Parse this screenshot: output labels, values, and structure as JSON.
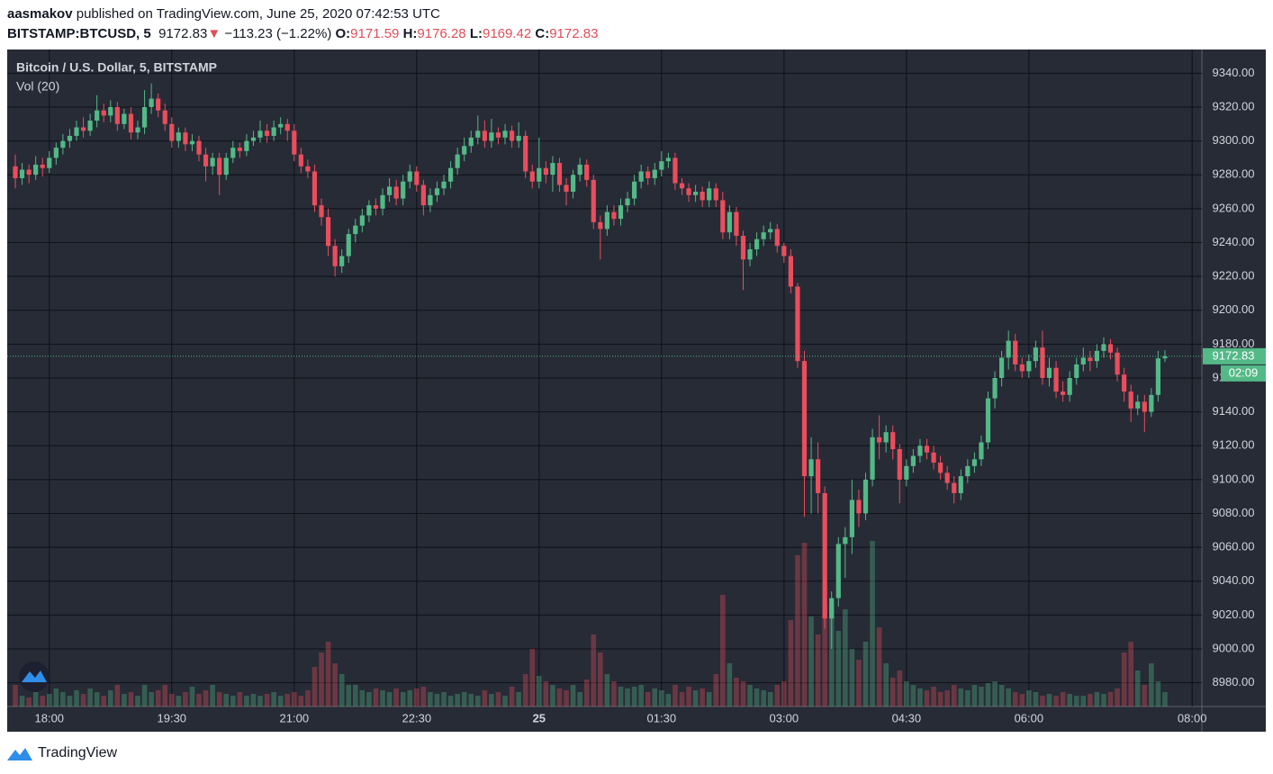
{
  "header": {
    "author": "aasmakov",
    "published": "published on TradingView.com, June 25, 2020 07:42:53 UTC",
    "symbol": "BITSTAMP:BTCUSD, 5",
    "change": "−113.23 (−1.22%)",
    "ohlc_labels": [
      "O:",
      "H:",
      "L:",
      "C:"
    ]
  },
  "footer": {
    "brand": "TradingView"
  },
  "chart_data": {
    "type": "candlestick",
    "title": "Bitcoin / U.S. Dollar, 5, BITSTAMP",
    "volume_title": "Vol (20)",
    "countdown": "02:09",
    "grid": true,
    "up_color": "#53b987",
    "down_color": "#eb4d5c",
    "categories": [
      "17:35",
      "17:40",
      "17:45",
      "17:50",
      "17:55",
      "18:00",
      "18:05",
      "18:10",
      "18:15",
      "18:20",
      "18:25",
      "18:30",
      "18:35",
      "18:40",
      "18:45",
      "18:50",
      "18:55",
      "19:00",
      "19:05",
      "19:10",
      "19:15",
      "19:20",
      "19:25",
      "19:30",
      "19:35",
      "19:40",
      "19:45",
      "19:50",
      "19:55",
      "20:00",
      "20:05",
      "20:10",
      "20:15",
      "20:20",
      "20:25",
      "20:30",
      "20:35",
      "20:40",
      "20:45",
      "20:50",
      "20:55",
      "21:00",
      "21:05",
      "21:10",
      "21:15",
      "21:20",
      "21:25",
      "21:30",
      "21:35",
      "21:40",
      "21:45",
      "21:50",
      "21:55",
      "22:00",
      "22:05",
      "22:10",
      "22:15",
      "22:20",
      "22:25",
      "22:30",
      "22:35",
      "22:40",
      "22:45",
      "22:50",
      "22:55",
      "23:00",
      "23:05",
      "23:10",
      "23:15",
      "23:20",
      "23:25",
      "23:30",
      "23:35",
      "23:40",
      "23:45",
      "23:50",
      "23:55",
      "00:00",
      "00:05",
      "00:10",
      "00:15",
      "00:20",
      "00:25",
      "00:30",
      "00:35",
      "00:40",
      "00:45",
      "00:50",
      "00:55",
      "01:00",
      "01:05",
      "01:10",
      "01:15",
      "01:20",
      "01:25",
      "01:30",
      "01:35",
      "01:40",
      "01:45",
      "01:50",
      "01:55",
      "02:00",
      "02:05",
      "02:10",
      "02:15",
      "02:20",
      "02:25",
      "02:30",
      "02:35",
      "02:40",
      "02:45",
      "02:50",
      "02:55",
      "03:00",
      "03:05",
      "03:10",
      "03:15",
      "03:20",
      "03:25",
      "03:30",
      "03:35",
      "03:40",
      "03:45",
      "03:50",
      "03:55",
      "04:00",
      "04:05",
      "04:10",
      "04:15",
      "04:20",
      "04:25",
      "04:30",
      "04:35",
      "04:40",
      "04:45",
      "04:50",
      "04:55",
      "05:00",
      "05:05",
      "05:10",
      "05:15",
      "05:20",
      "05:25",
      "05:30",
      "05:35",
      "05:40",
      "05:45",
      "05:50",
      "05:55",
      "06:00",
      "06:05",
      "06:10",
      "06:15",
      "06:20",
      "06:25",
      "06:30",
      "06:35",
      "06:40",
      "06:45",
      "06:50",
      "06:55",
      "07:00",
      "07:05",
      "07:10",
      "07:15",
      "07:20",
      "07:25",
      "07:30",
      "07:35",
      "07:40"
    ],
    "open": [
      9285,
      9278,
      9283,
      9280,
      9286,
      9284,
      9290,
      9296,
      9300,
      9303,
      9308,
      9306,
      9312,
      9318,
      9315,
      9320,
      9310,
      9316,
      9305,
      9308,
      9320,
      9325,
      9318,
      9310,
      9300,
      9305,
      9298,
      9300,
      9292,
      9285,
      9290,
      9280,
      9290,
      9296,
      9294,
      9300,
      9302,
      9306,
      9303,
      9308,
      9310,
      9306,
      9292,
      9285,
      9282,
      9262,
      9255,
      9238,
      9226,
      9232,
      9245,
      9250,
      9256,
      9262,
      9260,
      9268,
      9273,
      9266,
      9276,
      9282,
      9274,
      9262,
      9268,
      9272,
      9276,
      9284,
      9292,
      9297,
      9302,
      9306,
      9300,
      9305,
      9302,
      9306,
      9300,
      9303,
      9282,
      9276,
      9284,
      9280,
      9287,
      9274,
      9270,
      9280,
      9286,
      9277,
      9252,
      9248,
      9258,
      9254,
      9262,
      9266,
      9276,
      9282,
      9278,
      9283,
      9288,
      9290,
      9275,
      9272,
      9268,
      9270,
      9265,
      9272,
      9265,
      9246,
      9258,
      9244,
      9230,
      9236,
      9242,
      9246,
      9248,
      9238,
      9232,
      9214,
      9170,
      9102,
      9112,
      9092,
      9018,
      9030,
      9062,
      9066,
      9088,
      9080,
      9100,
      9125,
      9122,
      9128,
      9118,
      9100,
      9108,
      9114,
      9120,
      9116,
      9110,
      9104,
      9098,
      9092,
      9102,
      9108,
      9112,
      9122,
      9148,
      9160,
      9172,
      9182,
      9168,
      9164,
      9170,
      9178,
      9160,
      9166,
      9152,
      9150,
      9160,
      9168,
      9172,
      9170,
      9176,
      9180,
      9175,
      9162,
      9152,
      9142,
      9146,
      9140,
      9150,
      9171.59
    ],
    "high": [
      9292,
      9287,
      9286,
      9291,
      9290,
      9294,
      9299,
      9304,
      9307,
      9312,
      9314,
      9316,
      9327,
      9322,
      9324,
      9323,
      9319,
      9320,
      9312,
      9330,
      9334,
      9328,
      9322,
      9314,
      9308,
      9308,
      9304,
      9303,
      9296,
      9293,
      9293,
      9293,
      9300,
      9299,
      9304,
      9306,
      9312,
      9310,
      9312,
      9314,
      9313,
      9310,
      9296,
      9289,
      9286,
      9266,
      9260,
      9242,
      9236,
      9248,
      9254,
      9260,
      9265,
      9266,
      9272,
      9278,
      9277,
      9280,
      9286,
      9285,
      9277,
      9272,
      9276,
      9280,
      9288,
      9296,
      9302,
      9306,
      9315,
      9312,
      9313,
      9308,
      9310,
      9309,
      9311,
      9306,
      9286,
      9302,
      9288,
      9291,
      9290,
      9278,
      9283,
      9290,
      9289,
      9280,
      9256,
      9262,
      9262,
      9266,
      9270,
      9280,
      9286,
      9285,
      9287,
      9294,
      9293,
      9293,
      9278,
      9275,
      9274,
      9273,
      9276,
      9275,
      9270,
      9262,
      9261,
      9247,
      9240,
      9246,
      9250,
      9252,
      9251,
      9240,
      9236,
      9216,
      9176,
      9125,
      9122,
      9096,
      9034,
      9066,
      9072,
      9100,
      9094,
      9104,
      9130,
      9138,
      9132,
      9132,
      9121,
      9112,
      9118,
      9124,
      9124,
      9120,
      9114,
      9108,
      9102,
      9106,
      9112,
      9116,
      9126,
      9152,
      9164,
      9176,
      9188,
      9186,
      9172,
      9174,
      9182,
      9188,
      9172,
      9170,
      9158,
      9164,
      9172,
      9178,
      9176,
      9180,
      9184,
      9183,
      9178,
      9166,
      9156,
      9150,
      9150,
      9154,
      9176,
      9176.28
    ],
    "low": [
      9272,
      9274,
      9275,
      9277,
      9279,
      9281,
      9286,
      9292,
      9296,
      9300,
      9302,
      9303,
      9308,
      9311,
      9311,
      9306,
      9307,
      9301,
      9301,
      9304,
      9316,
      9314,
      9306,
      9296,
      9296,
      9294,
      9294,
      9288,
      9276,
      9280,
      9268,
      9277,
      9287,
      9290,
      9291,
      9297,
      9299,
      9299,
      9300,
      9304,
      9300,
      9288,
      9281,
      9278,
      9258,
      9250,
      9232,
      9220,
      9222,
      9228,
      9240,
      9246,
      9252,
      9256,
      9256,
      9264,
      9262,
      9262,
      9272,
      9270,
      9256,
      9258,
      9264,
      9268,
      9272,
      9280,
      9288,
      9293,
      9298,
      9296,
      9296,
      9298,
      9298,
      9296,
      9296,
      9278,
      9272,
      9272,
      9275,
      9270,
      9270,
      9262,
      9266,
      9276,
      9273,
      9248,
      9230,
      9244,
      9250,
      9250,
      9258,
      9262,
      9272,
      9274,
      9274,
      9279,
      9284,
      9271,
      9268,
      9264,
      9264,
      9261,
      9261,
      9261,
      9242,
      9242,
      9238,
      9212,
      9226,
      9232,
      9238,
      9242,
      9234,
      9228,
      9210,
      9166,
      9078,
      9080,
      9080,
      9012,
      9000,
      9025,
      9042,
      9056,
      9072,
      9076,
      9096,
      9112,
      9116,
      9112,
      9086,
      9096,
      9104,
      9110,
      9112,
      9106,
      9100,
      9094,
      9086,
      9088,
      9098,
      9104,
      9108,
      9118,
      9142,
      9155,
      9165,
      9164,
      9160,
      9160,
      9166,
      9156,
      9155,
      9148,
      9146,
      9146,
      9156,
      9164,
      9164,
      9166,
      9172,
      9171,
      9158,
      9146,
      9134,
      9138,
      9128,
      9137,
      9146,
      9169.42
    ],
    "close": [
      9278,
      9283,
      9280,
      9286,
      9284,
      9290,
      9296,
      9300,
      9303,
      9308,
      9306,
      9312,
      9318,
      9315,
      9320,
      9310,
      9316,
      9305,
      9308,
      9320,
      9325,
      9318,
      9310,
      9300,
      9305,
      9298,
      9300,
      9292,
      9285,
      9290,
      9280,
      9290,
      9296,
      9294,
      9300,
      9302,
      9306,
      9303,
      9308,
      9310,
      9306,
      9292,
      9285,
      9282,
      9262,
      9255,
      9238,
      9226,
      9232,
      9245,
      9250,
      9256,
      9262,
      9260,
      9268,
      9273,
      9266,
      9276,
      9282,
      9274,
      9262,
      9268,
      9272,
      9276,
      9284,
      9292,
      9297,
      9302,
      9306,
      9300,
      9305,
      9302,
      9306,
      9300,
      9303,
      9282,
      9276,
      9284,
      9280,
      9287,
      9274,
      9270,
      9280,
      9286,
      9277,
      9252,
      9248,
      9258,
      9254,
      9262,
      9266,
      9276,
      9282,
      9278,
      9283,
      9288,
      9290,
      9275,
      9272,
      9268,
      9270,
      9265,
      9272,
      9265,
      9246,
      9258,
      9244,
      9230,
      9236,
      9242,
      9246,
      9248,
      9238,
      9232,
      9214,
      9170,
      9102,
      9112,
      9092,
      9018,
      9030,
      9062,
      9066,
      9088,
      9080,
      9100,
      9125,
      9122,
      9128,
      9118,
      9100,
      9108,
      9114,
      9120,
      9116,
      9110,
      9104,
      9098,
      9092,
      9102,
      9108,
      9112,
      9122,
      9148,
      9160,
      9172,
      9182,
      9168,
      9164,
      9170,
      9178,
      9160,
      9166,
      9152,
      9150,
      9160,
      9168,
      9172,
      9170,
      9176,
      9180,
      9175,
      9162,
      9152,
      9142,
      9146,
      9140,
      9150,
      9171.59,
      9172.83
    ],
    "volume": [
      60,
      30,
      25,
      40,
      30,
      35,
      50,
      40,
      30,
      45,
      35,
      50,
      40,
      30,
      45,
      60,
      35,
      40,
      30,
      60,
      40,
      45,
      60,
      35,
      30,
      40,
      55,
      35,
      45,
      60,
      40,
      35,
      30,
      40,
      30,
      35,
      30,
      35,
      40,
      30,
      35,
      40,
      30,
      45,
      110,
      150,
      180,
      120,
      90,
      60,
      60,
      45,
      40,
      50,
      45,
      40,
      50,
      40,
      45,
      50,
      55,
      40,
      35,
      40,
      30,
      35,
      40,
      35,
      30,
      45,
      35,
      40,
      30,
      55,
      40,
      90,
      160,
      85,
      70,
      60,
      50,
      45,
      60,
      40,
      75,
      200,
      150,
      90,
      70,
      55,
      50,
      55,
      60,
      40,
      50,
      45,
      35,
      60,
      40,
      55,
      45,
      50,
      40,
      90,
      310,
      120,
      80,
      70,
      60,
      50,
      45,
      40,
      60,
      70,
      240,
      420,
      455,
      250,
      200,
      280,
      290,
      210,
      270,
      160,
      130,
      180,
      460,
      220,
      120,
      80,
      100,
      70,
      60,
      50,
      45,
      55,
      40,
      45,
      60,
      50,
      45,
      60,
      55,
      65,
      70,
      60,
      50,
      40,
      35,
      45,
      40,
      30,
      35,
      30,
      40,
      35,
      30,
      30,
      35,
      40,
      35,
      40,
      50,
      150,
      180,
      100,
      60,
      120,
      70,
      40
    ],
    "ylim": [
      8966,
      9354
    ],
    "yticks": [
      {
        "value": 8980,
        "label": "8980.00"
      },
      {
        "value": 9000,
        "label": "9000.00"
      },
      {
        "value": 9020,
        "label": "9020.00"
      },
      {
        "value": 9040,
        "label": "9040.00"
      },
      {
        "value": 9060,
        "label": "9060.00"
      },
      {
        "value": 9080,
        "label": "9080.00"
      },
      {
        "value": 9100,
        "label": "9100.00"
      },
      {
        "value": 9120,
        "label": "9120.00"
      },
      {
        "value": 9140,
        "label": "9140.00"
      },
      {
        "value": 9160,
        "label": "9160.00"
      },
      {
        "value": 9180,
        "label": "9180.00"
      },
      {
        "value": 9200,
        "label": "9200.00"
      },
      {
        "value": 9220,
        "label": "9220.00"
      },
      {
        "value": 9240,
        "label": "9240.00"
      },
      {
        "value": 9260,
        "label": "9260.00"
      },
      {
        "value": 9280,
        "label": "9280.00"
      },
      {
        "value": 9300,
        "label": "9300.00"
      },
      {
        "value": 9320,
        "label": "9320.00"
      },
      {
        "value": 9340,
        "label": "9340.00"
      }
    ],
    "vol_ylim": [
      0,
      1000
    ],
    "xticks": [
      "18:00",
      "19:30",
      "21:00",
      "22:30",
      {
        "value": "00:00",
        "label": "25"
      },
      "01:30",
      "03:00",
      "04:30",
      "06:00",
      "08:00"
    ]
  }
}
